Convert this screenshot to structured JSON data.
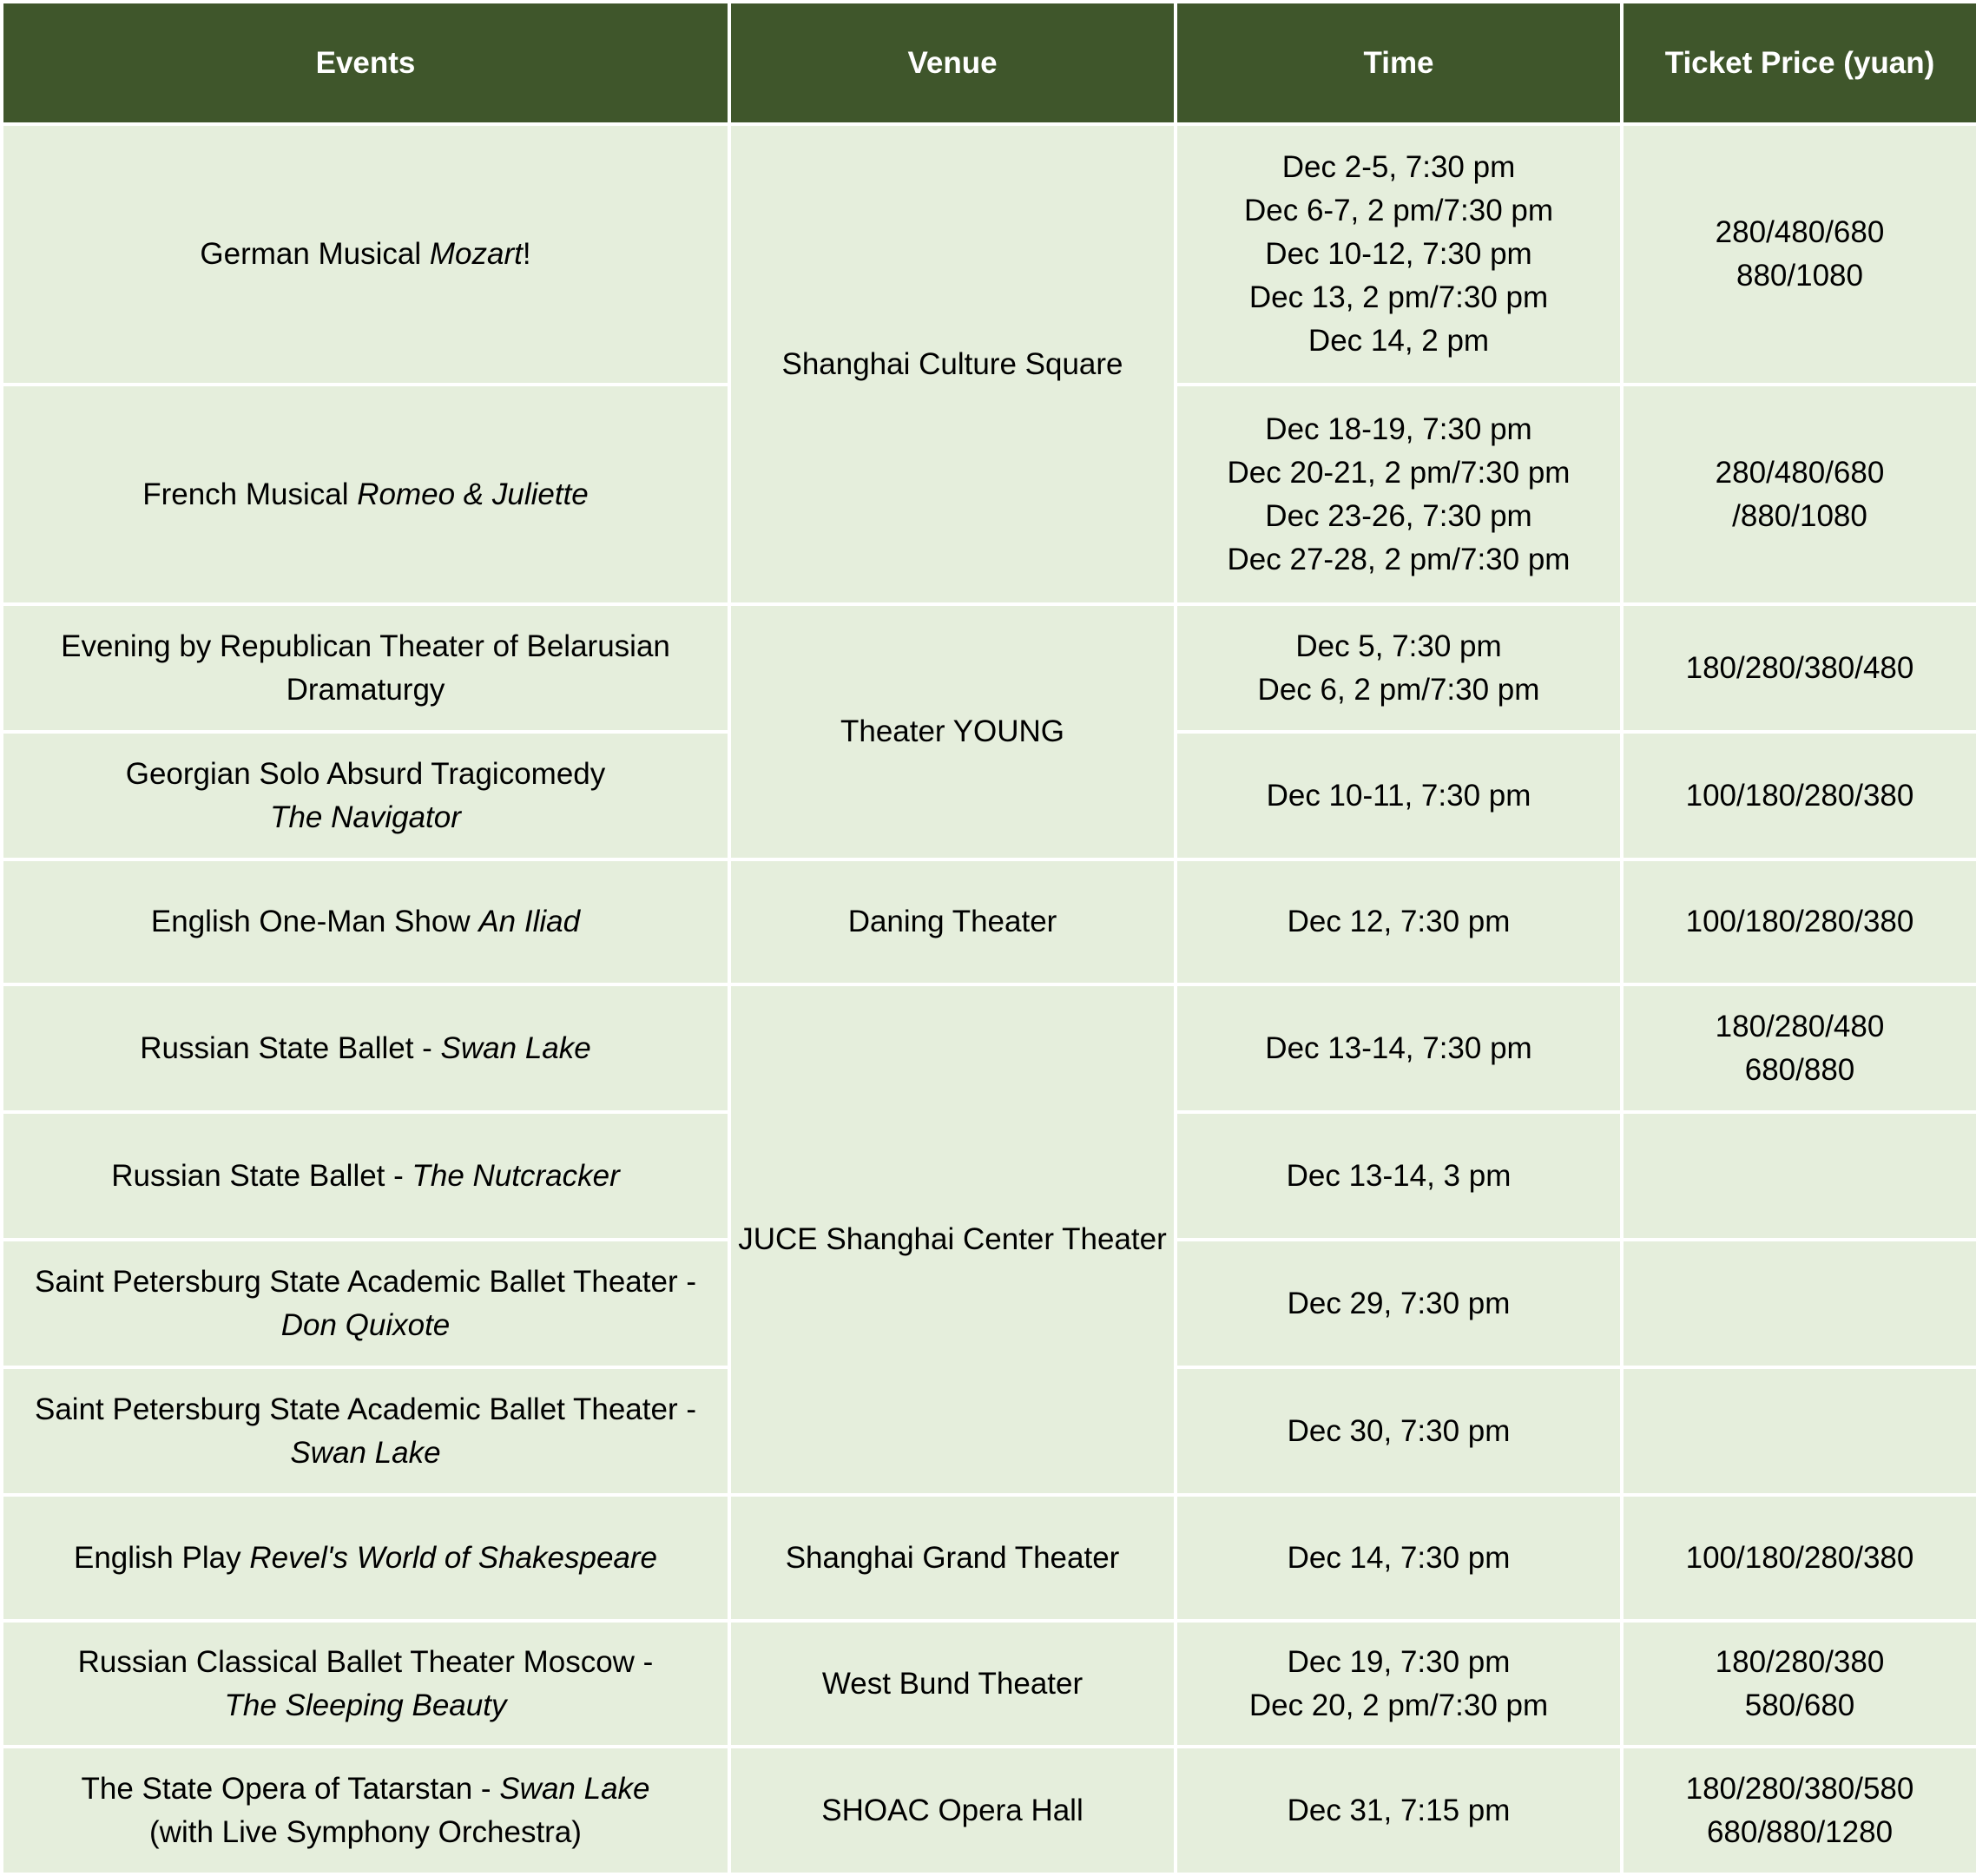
{
  "header": [
    "Events",
    "Venue",
    "Time",
    "Ticket Price (yuan)"
  ],
  "colors": {
    "header_bg": "#3f562b",
    "cell_bg": "#e5eedc",
    "header_text": "#ffffff"
  },
  "rows": [
    {
      "event": [
        {
          "t": "German Musical "
        },
        {
          "t": "Mozart",
          "i": true
        },
        {
          "t": "!"
        }
      ],
      "venue": "Shanghai Culture Square",
      "venue_span": 2,
      "time": [
        "Dec 2-5, 7:30 pm",
        "Dec 6-7, 2 pm/7:30 pm",
        "Dec 10-12, 7:30 pm",
        "Dec 13, 2 pm/7:30 pm",
        "Dec 14, 2 pm"
      ],
      "price": [
        "280/480/680",
        "880/1080"
      ]
    },
    {
      "event": [
        {
          "t": "French Musical "
        },
        {
          "t": "Romeo & Juliette",
          "i": true
        }
      ],
      "time": [
        "Dec 18-19, 7:30 pm",
        "Dec 20-21, 2 pm/7:30 pm",
        "Dec 23-26, 7:30 pm",
        "Dec 27-28, 2 pm/7:30 pm"
      ],
      "price": [
        "280/480/680",
        "/880/1080"
      ]
    },
    {
      "event": [
        {
          "t": "Evening by Republican Theater of Belarusian Dramaturgy"
        }
      ],
      "venue": "Theater YOUNG",
      "venue_span": 2,
      "time": [
        "Dec 5, 7:30 pm",
        "Dec 6, 2 pm/7:30 pm"
      ],
      "price": [
        "180/280/380/480"
      ]
    },
    {
      "event": [
        {
          "t": "Georgian Solo Absurd Tragicomedy "
        },
        {
          "br": true
        },
        {
          "t": "The Navigator",
          "i": true
        }
      ],
      "time": [
        "Dec 10-11, 7:30 pm"
      ],
      "price": [
        "100/180/280/380"
      ]
    },
    {
      "event": [
        {
          "t": "English One-Man Show "
        },
        {
          "t": "An Iliad",
          "i": true
        }
      ],
      "venue": "Daning Theater",
      "venue_span": 1,
      "time": [
        "Dec 12, 7:30 pm"
      ],
      "price": [
        "100/180/280/380"
      ]
    },
    {
      "event": [
        {
          "t": "Russian State Ballet - "
        },
        {
          "t": "Swan Lake",
          "i": true
        }
      ],
      "venue": "JUCE Shanghai Center Theater",
      "venue_span": 4,
      "time": [
        "Dec 13-14, 7:30 pm"
      ],
      "price": [
        "180/280/480",
        "680/880"
      ]
    },
    {
      "event": [
        {
          "t": "Russian State Ballet - "
        },
        {
          "t": "The Nutcracker",
          "i": true
        }
      ],
      "time": [
        "Dec 13-14, 3 pm"
      ],
      "price": []
    },
    {
      "event": [
        {
          "t": "Saint Petersburg State Academic Ballet Theater - "
        },
        {
          "t": "Don Quixote",
          "i": true
        }
      ],
      "time": [
        "Dec 29, 7:30 pm"
      ],
      "price": []
    },
    {
      "event": [
        {
          "t": "Saint Petersburg State Academic Ballet Theater - "
        },
        {
          "t": "Swan Lake",
          "i": true
        }
      ],
      "time": [
        "Dec 30, 7:30 pm"
      ],
      "price": []
    },
    {
      "event": [
        {
          "t": "English Play "
        },
        {
          "t": "Revel's World of Shakespeare",
          "i": true
        }
      ],
      "venue": "Shanghai Grand Theater",
      "venue_span": 1,
      "time": [
        "Dec 14, 7:30 pm"
      ],
      "price": [
        "100/180/280/380"
      ]
    },
    {
      "event": [
        {
          "t": "Russian Classical Ballet Theater Moscow - "
        },
        {
          "br": true
        },
        {
          "t": "The Sleeping Beauty",
          "i": true
        }
      ],
      "venue": "West Bund Theater",
      "venue_span": 1,
      "time": [
        "Dec 19, 7:30 pm",
        "Dec 20, 2 pm/7:30 pm"
      ],
      "price": [
        "180/280/380",
        "580/680"
      ]
    },
    {
      "event": [
        {
          "t": "The State Opera of Tatarstan - "
        },
        {
          "t": "Swan Lake",
          "i": true
        },
        {
          "br": true
        },
        {
          "t": "(with Live Symphony Orchestra)"
        }
      ],
      "venue": "SHOAC Opera Hall",
      "venue_span": 1,
      "time": [
        "Dec 31, 7:15 pm"
      ],
      "price": [
        "180/280/380/580",
        "680/880/1280"
      ]
    }
  ]
}
